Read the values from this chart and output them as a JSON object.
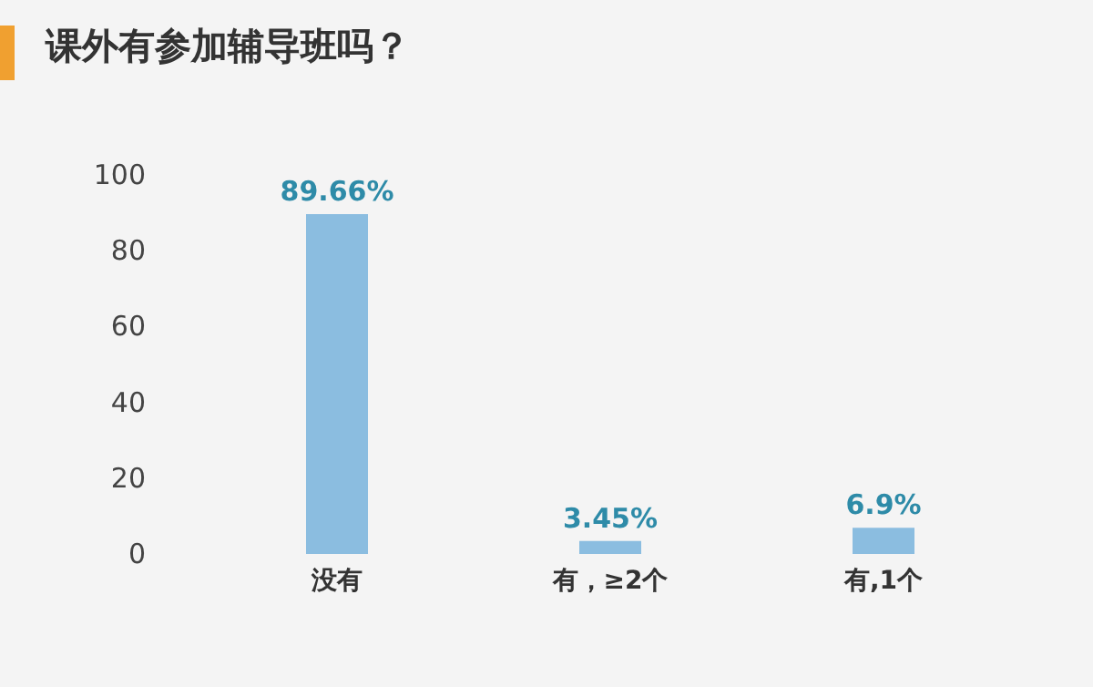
{
  "chart_data": {
    "type": "bar",
    "title": "课外有参加辅导班吗？",
    "categories": [
      "没有",
      "有，≥2个",
      "有,1个"
    ],
    "values": [
      89.66,
      3.45,
      6.9
    ],
    "value_labels": [
      "89.66%",
      "3.45%",
      "6.9%"
    ],
    "color": "#8bbde0",
    "ylim": [
      0,
      100
    ],
    "yticks": [
      0,
      20,
      40,
      60,
      80,
      100
    ],
    "grid": false
  }
}
